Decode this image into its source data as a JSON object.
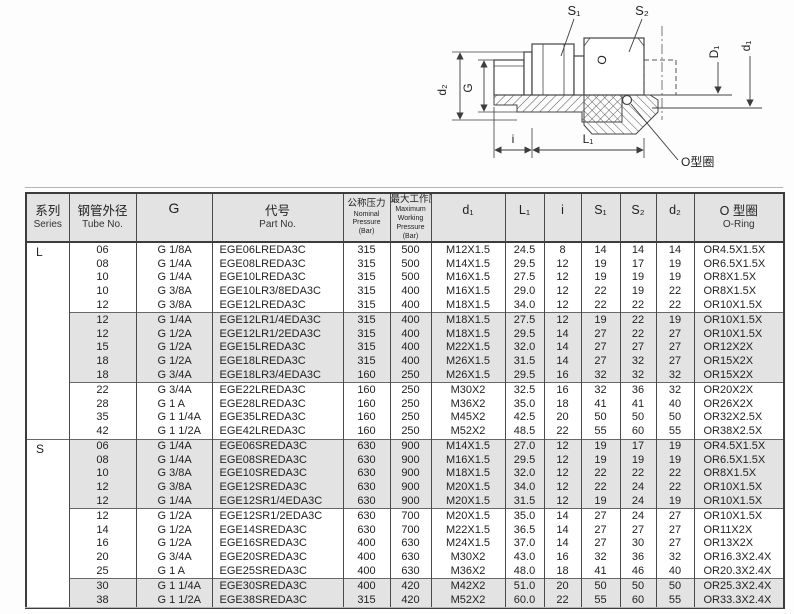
{
  "diagram": {
    "labels": {
      "s1": "S₁",
      "s2": "S₂",
      "d2": "d₂",
      "g": "G",
      "D1": "D₁",
      "d1": "d₁",
      "i": "i",
      "L1": "L₁",
      "oring_callout": "O型圈",
      "stamp": "O"
    }
  },
  "table": {
    "headers": {
      "series_zh": "系列",
      "series_en": "Series",
      "tube_zh": "钢管外径",
      "tube_en": "Tube No.",
      "g": "G",
      "part_zh": "代号",
      "part_en": "Part No.",
      "nominal_zh": "公称压力",
      "nominal_en": "Nominal Pressure (Bar)",
      "max_zh": "最大工作压力",
      "max_en": "Maximum Working Pressure (Bar)",
      "d1": "d₁",
      "L1": "L₁",
      "i": "i",
      "S1": "S₁",
      "S2": "S₂",
      "d2": "d₂",
      "oring_zh": "O 型圈",
      "oring_en": "O-Ring"
    },
    "groups": [
      {
        "series": "L",
        "shaded": false,
        "rows": [
          [
            "06",
            "G 1/8A",
            "EGE06LREDA3C",
            "315",
            "500",
            "M12X1.5",
            "24.5",
            "8",
            "14",
            "14",
            "14",
            "OR4.5X1.5X"
          ],
          [
            "08",
            "G 1/4A",
            "EGE08LREDA3C",
            "315",
            "500",
            "M14X1.5",
            "29.5",
            "12",
            "19",
            "17",
            "19",
            "OR6.5X1.5X"
          ],
          [
            "10",
            "G 1/4A",
            "EGE10LREDA3C",
            "315",
            "500",
            "M16X1.5",
            "27.5",
            "12",
            "19",
            "19",
            "19",
            "OR8X1.5X"
          ],
          [
            "10",
            "G 3/8A",
            "EGE10LR3/8EDA3C",
            "315",
            "400",
            "M16X1.5",
            "29.0",
            "12",
            "22",
            "19",
            "22",
            "OR8X1.5X"
          ],
          [
            "12",
            "G 3/8A",
            "EGE12LREDA3C",
            "315",
            "400",
            "M18X1.5",
            "34.0",
            "12",
            "22",
            "22",
            "22",
            "OR10X1.5X"
          ]
        ]
      },
      {
        "series": "",
        "shaded": true,
        "rows": [
          [
            "12",
            "G 1/4A",
            "EGE12LR1/4EDA3C",
            "315",
            "400",
            "M18X1.5",
            "27.5",
            "12",
            "19",
            "22",
            "19",
            "OR10X1.5X"
          ],
          [
            "12",
            "G 1/2A",
            "EGE12LR1/2EDA3C",
            "315",
            "400",
            "M18X1.5",
            "29.5",
            "14",
            "27",
            "22",
            "27",
            "OR10X1.5X"
          ],
          [
            "15",
            "G 1/2A",
            "EGE15LREDA3C",
            "315",
            "400",
            "M22X1.5",
            "32.0",
            "14",
            "27",
            "27",
            "27",
            "OR12X2X"
          ],
          [
            "18",
            "G 1/2A",
            "EGE18LREDA3C",
            "315",
            "400",
            "M26X1.5",
            "31.5",
            "14",
            "27",
            "32",
            "27",
            "OR15X2X"
          ],
          [
            "18",
            "G 3/4A",
            "EGE18LR3/4EDA3C",
            "160",
            "250",
            "M26X1.5",
            "29.5",
            "16",
            "32",
            "32",
            "32",
            "OR15X2X"
          ]
        ]
      },
      {
        "series": "",
        "shaded": false,
        "rows": [
          [
            "22",
            "G 3/4A",
            "EGE22LREDA3C",
            "160",
            "250",
            "M30X2",
            "32.5",
            "16",
            "32",
            "36",
            "32",
            "OR20X2X"
          ],
          [
            "28",
            "G 1 A",
            "EGE28LREDA3C",
            "160",
            "250",
            "M36X2",
            "35.0",
            "18",
            "41",
            "41",
            "40",
            "OR26X2X"
          ],
          [
            "35",
            "G 1 1/4A",
            "EGE35LREDA3C",
            "160",
            "250",
            "M45X2",
            "42.5",
            "20",
            "50",
            "50",
            "50",
            "OR32X2.5X"
          ],
          [
            "42",
            "G 1 1/2A",
            "EGE42LREDA3C",
            "160",
            "250",
            "M52X2",
            "48.5",
            "22",
            "55",
            "60",
            "55",
            "OR38X2.5X"
          ]
        ]
      },
      {
        "series": "S",
        "shaded": true,
        "rows": [
          [
            "06",
            "G 1/4A",
            "EGE06SREDA3C",
            "630",
            "900",
            "M14X1.5",
            "27.0",
            "12",
            "19",
            "17",
            "19",
            "OR4.5X1.5X"
          ],
          [
            "08",
            "G 1/4A",
            "EGE08SREDA3C",
            "630",
            "900",
            "M16X1.5",
            "29.5",
            "12",
            "19",
            "19",
            "19",
            "OR6.5X1.5X"
          ],
          [
            "10",
            "G 3/8A",
            "EGE10SREDA3C",
            "630",
            "900",
            "M18X1.5",
            "32.0",
            "12",
            "22",
            "22",
            "22",
            "OR8X1.5X"
          ],
          [
            "12",
            "G 3/8A",
            "EGE12SREDA3C",
            "630",
            "900",
            "M20X1.5",
            "34.0",
            "12",
            "22",
            "24",
            "22",
            "OR10X1.5X"
          ],
          [
            "12",
            "G 1/4A",
            "EGE12SR1/4EDA3C",
            "630",
            "900",
            "M20X1.5",
            "31.5",
            "12",
            "19",
            "24",
            "19",
            "OR10X1.5X"
          ]
        ]
      },
      {
        "series": "",
        "shaded": false,
        "rows": [
          [
            "12",
            "G 1/2A",
            "EGE12SR1/2EDA3C",
            "630",
            "700",
            "M20X1.5",
            "35.0",
            "14",
            "27",
            "24",
            "27",
            "OR10X1.5X"
          ],
          [
            "14",
            "G 1/2A",
            "EGE14SREDA3C",
            "630",
            "700",
            "M22X1.5",
            "36.5",
            "14",
            "27",
            "27",
            "27",
            "OR11X2X"
          ],
          [
            "16",
            "G 1/2A",
            "EGE16SREDA3C",
            "400",
            "630",
            "M24X1.5",
            "37.0",
            "14",
            "27",
            "30",
            "27",
            "OR13X2X"
          ],
          [
            "20",
            "G 3/4A",
            "EGE20SREDA3C",
            "400",
            "630",
            "M30X2",
            "43.0",
            "16",
            "32",
            "36",
            "32",
            "OR16.3X2.4X"
          ],
          [
            "25",
            "G 1 A",
            "EGE25SREDA3C",
            "400",
            "630",
            "M36X2",
            "48.0",
            "18",
            "41",
            "46",
            "40",
            "OR20.3X2.4X"
          ]
        ]
      },
      {
        "series": "",
        "shaded": true,
        "rows": [
          [
            "30",
            "G 1 1/4A",
            "EGE30SREDA3C",
            "400",
            "420",
            "M42X2",
            "51.0",
            "20",
            "50",
            "50",
            "50",
            "OR25.3X2.4X"
          ],
          [
            "38",
            "G 1 1/2A",
            "EGE38SREDA3C",
            "315",
            "420",
            "M52X2",
            "60.0",
            "22",
            "55",
            "60",
            "55",
            "OR33.3X2.4X"
          ]
        ]
      }
    ]
  },
  "colors": {
    "shaded_row": "#e3e3e3",
    "border_dark": "#3c3c3c",
    "border_light": "#686868",
    "text": "#222222"
  }
}
